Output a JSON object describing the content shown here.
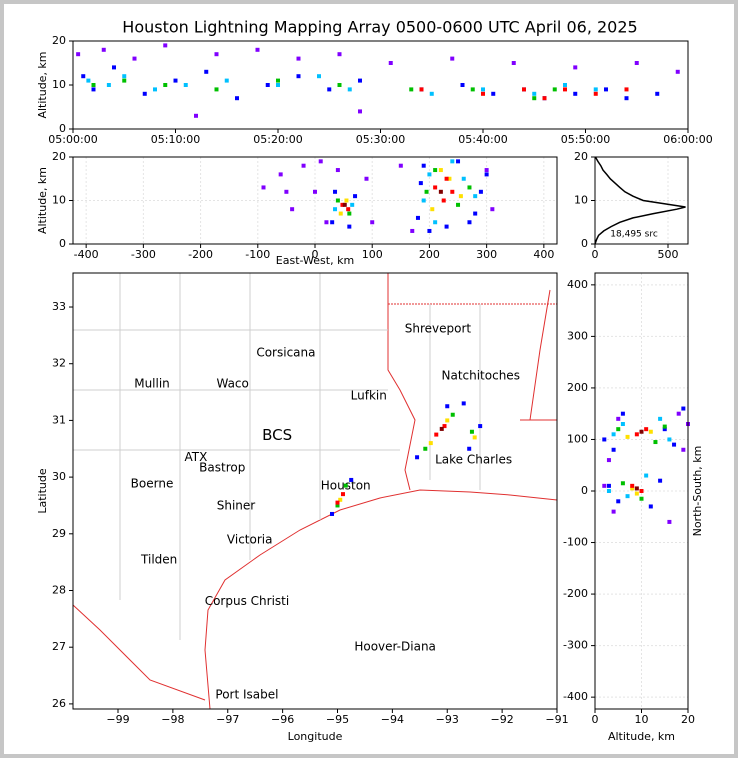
{
  "chart_data": [
    {
      "type": "scatter",
      "title": "Houston Lightning Mapping Array 0500-0600 UTC April 06, 2025",
      "ylabel": "Altitude, km",
      "xlim": [
        0,
        60
      ],
      "ylim": [
        0,
        20
      ],
      "xticks": [
        {
          "value": 0,
          "label": "05:00:00"
        },
        {
          "value": 10,
          "label": "05:10:00"
        },
        {
          "value": 20,
          "label": "05:20:00"
        },
        {
          "value": 30,
          "label": "05:30:00"
        },
        {
          "value": 40,
          "label": "05:40:00"
        },
        {
          "value": 50,
          "label": "05:50:00"
        },
        {
          "value": 60,
          "label": "06:00:00"
        }
      ],
      "yticks": [
        0,
        10,
        20
      ],
      "grid": false,
      "series": [
        {
          "color": "#8000ff",
          "x": [
            0.5,
            3,
            6,
            9,
            14,
            18,
            22,
            26,
            31,
            37,
            43,
            49,
            55,
            59,
            12,
            28
          ],
          "y": [
            17,
            18,
            16,
            19,
            17,
            18,
            16,
            17,
            15,
            16,
            15,
            14,
            15,
            13,
            3,
            4
          ]
        },
        {
          "color": "#0000ff",
          "x": [
            1,
            2,
            4,
            7,
            10,
            13,
            16,
            19,
            22,
            25,
            28,
            34,
            38,
            41,
            44,
            46,
            49,
            52,
            54,
            57
          ],
          "y": [
            12,
            9,
            14,
            8,
            11,
            13,
            7,
            10,
            12,
            9,
            11,
            9,
            10,
            8,
            9,
            7,
            8,
            9,
            7,
            8
          ]
        },
        {
          "color": "#00c0ff",
          "x": [
            1.5,
            3.5,
            5,
            8,
            11,
            15,
            20,
            24,
            27,
            35,
            40,
            45,
            48,
            51
          ],
          "y": [
            11,
            10,
            12,
            9,
            10,
            11,
            10,
            12,
            9,
            8,
            9,
            8,
            10,
            9
          ]
        },
        {
          "color": "#00c000",
          "x": [
            2,
            5,
            9,
            14,
            20,
            26,
            33,
            39,
            45,
            47
          ],
          "y": [
            10,
            11,
            10,
            9,
            11,
            10,
            9,
            9,
            7,
            9
          ]
        },
        {
          "color": "#ff0000",
          "x": [
            34,
            40,
            44,
            46,
            48,
            51,
            54
          ],
          "y": [
            9,
            8,
            9,
            7,
            9,
            8,
            9
          ]
        }
      ]
    },
    {
      "type": "scatter",
      "xlabel": "East-West, km",
      "ylabel": "Altitude, km",
      "xlim": [
        -423,
        423
      ],
      "ylim": [
        0,
        20
      ],
      "xticks": [
        -400,
        -300,
        -200,
        -100,
        0,
        100,
        200,
        300,
        400
      ],
      "yticks": [
        0,
        10,
        20
      ],
      "grid": true,
      "series": [
        {
          "color": "#8000ff",
          "x": [
            -90,
            -60,
            -40,
            -20,
            0,
            20,
            40,
            90,
            100,
            150,
            170,
            300,
            310,
            -50,
            10
          ],
          "y": [
            13,
            16,
            8,
            18,
            12,
            5,
            17,
            15,
            5,
            18,
            3,
            17,
            8,
            12,
            19
          ]
        },
        {
          "color": "#0000ff",
          "x": [
            30,
            35,
            60,
            70,
            180,
            185,
            190,
            280,
            290,
            300,
            230,
            250,
            200,
            270
          ],
          "y": [
            5,
            12,
            4,
            11,
            6,
            14,
            18,
            7,
            12,
            16,
            4,
            19,
            3,
            5
          ]
        },
        {
          "color": "#00c0ff",
          "x": [
            35,
            65,
            190,
            200,
            280,
            260,
            240,
            210
          ],
          "y": [
            8,
            9,
            10,
            16,
            11,
            15,
            19,
            5
          ]
        },
        {
          "color": "#00c000",
          "x": [
            40,
            60,
            195,
            270,
            210,
            250
          ],
          "y": [
            10,
            7,
            12,
            13,
            17,
            9
          ]
        },
        {
          "color": "#ffe000",
          "x": [
            45,
            55,
            205,
            235,
            255,
            220
          ],
          "y": [
            7,
            10,
            8,
            15,
            11,
            17
          ]
        },
        {
          "color": "#ff0000",
          "x": [
            48,
            58,
            210,
            225,
            240,
            230
          ],
          "y": [
            9,
            8,
            13,
            10,
            12,
            15
          ]
        },
        {
          "color": "#800000",
          "x": [
            52,
            220
          ],
          "y": [
            9,
            12
          ]
        }
      ]
    },
    {
      "type": "line",
      "annotation": "18,495 src",
      "xlim": [
        0,
        637
      ],
      "ylim": [
        0,
        20
      ],
      "xticks": [
        0,
        500
      ],
      "yticks": [
        0,
        10,
        20
      ],
      "grid": true,
      "series": [
        {
          "color": "#000000",
          "x": [
            0,
            10,
            25,
            60,
            110,
            170,
            260,
            400,
            560,
            620,
            520,
            330,
            260,
            205,
            170,
            137,
            105,
            80,
            55,
            40,
            20,
            3
          ],
          "y": [
            0,
            1,
            2,
            3,
            4,
            5,
            6,
            7,
            8,
            8.5,
            9,
            10,
            11,
            12,
            13,
            14,
            15,
            16,
            17,
            18,
            19,
            20
          ]
        }
      ]
    },
    {
      "type": "map",
      "xlabel": "Longitude",
      "ylabel": "Latitude",
      "xlim": [
        -99.82,
        -91
      ],
      "ylim": [
        25.91,
        33.6
      ],
      "xticks": [
        {
          "value": -99,
          "label": "−99"
        },
        {
          "value": -98,
          "label": "−98"
        },
        {
          "value": -97,
          "label": "−97"
        },
        {
          "value": -96,
          "label": "−96"
        },
        {
          "value": -95,
          "label": "−95"
        },
        {
          "value": -94,
          "label": "−94"
        },
        {
          "value": -93,
          "label": "−93"
        },
        {
          "value": -92,
          "label": "−92"
        },
        {
          "value": -91,
          "label": "−91"
        }
      ],
      "yticks": [
        26,
        27,
        28,
        29,
        30,
        31,
        32,
        33
      ],
      "grid": false,
      "places": [
        {
          "label": "Shreveport",
          "lon": -93.17,
          "lat": 32.61,
          "color": "#000000"
        },
        {
          "label": "Corsicana",
          "lon": -95.94,
          "lat": 32.19,
          "color": "#000000"
        },
        {
          "label": "Natchitoches",
          "lon": -92.39,
          "lat": 31.78,
          "color": "#000000"
        },
        {
          "label": "Mullin",
          "lon": -98.38,
          "lat": 31.64,
          "color": "#ff8c3c"
        },
        {
          "label": "Waco",
          "lon": -96.91,
          "lat": 31.64,
          "color": "#000000"
        },
        {
          "label": "Lufkin",
          "lon": -94.43,
          "lat": 31.43,
          "color": "#000000"
        },
        {
          "label": "BCS",
          "lon": -96.1,
          "lat": 30.73,
          "color": "#800000"
        },
        {
          "label": "ATX",
          "lon": -97.58,
          "lat": 30.35,
          "color": "#ff8c3c"
        },
        {
          "label": "Bastrop",
          "lon": -97.1,
          "lat": 30.16,
          "color": "#000000"
        },
        {
          "label": "Lake Charles",
          "lon": -92.52,
          "lat": 30.3,
          "color": "#000000"
        },
        {
          "label": "Boerne",
          "lon": -98.38,
          "lat": 29.88,
          "color": "#000000"
        },
        {
          "label": "Houston",
          "lon": -94.85,
          "lat": 29.84,
          "color": "#f0a020"
        },
        {
          "label": "Shiner",
          "lon": -96.85,
          "lat": 29.49,
          "color": "#000000"
        },
        {
          "label": "Victoria",
          "lon": -96.6,
          "lat": 28.89,
          "color": "#000000"
        },
        {
          "label": "Tilden",
          "lon": -98.25,
          "lat": 28.54,
          "color": "#000000"
        },
        {
          "label": "Corpus Christi",
          "lon": -96.65,
          "lat": 27.81,
          "color": "#000000"
        },
        {
          "label": "Hoover-Diana",
          "lon": -93.95,
          "lat": 27.0,
          "color": "#0000ff"
        },
        {
          "label": "Port Isabel",
          "lon": -96.65,
          "lat": 26.16,
          "color": "#000000"
        }
      ],
      "series": [
        {
          "color": "#0000ff",
          "x": [
            -95.1,
            -94.75,
            -93.55,
            -92.7,
            -92.4,
            -93.0,
            -92.6
          ],
          "y": [
            29.35,
            29.95,
            30.35,
            31.3,
            30.9,
            31.25,
            30.5
          ]
        },
        {
          "color": "#00c000",
          "x": [
            -95.0,
            -94.85,
            -93.4,
            -92.9,
            -92.55
          ],
          "y": [
            29.5,
            29.85,
            30.5,
            31.1,
            30.8
          ]
        },
        {
          "color": "#ffe000",
          "x": [
            -94.95,
            -93.3,
            -93.0,
            -92.5
          ],
          "y": [
            29.6,
            30.6,
            31.0,
            30.7
          ]
        },
        {
          "color": "#ff0000",
          "x": [
            -95.0,
            -94.9,
            -93.2,
            -93.05
          ],
          "y": [
            29.55,
            29.7,
            30.75,
            30.9
          ]
        },
        {
          "color": "#800000",
          "x": [
            -93.1
          ],
          "y": [
            30.85
          ]
        }
      ]
    },
    {
      "type": "scatter",
      "xlabel": "Altitude, km",
      "ylabel": "North-South, km",
      "ylabel_side": "right",
      "xlim": [
        0,
        20
      ],
      "ylim": [
        -423,
        423
      ],
      "xticks": [
        0,
        10,
        20
      ],
      "yticks": [
        -400,
        -300,
        -200,
        -100,
        0,
        100,
        200,
        300,
        400
      ],
      "grid": true,
      "series": [
        {
          "color": "#8000ff",
          "x": [
            3,
            5,
            18,
            19,
            20,
            4,
            16,
            2
          ],
          "y": [
            60,
            140,
            150,
            80,
            130,
            -40,
            -60,
            10
          ]
        },
        {
          "color": "#0000ff",
          "x": [
            2,
            4,
            6,
            15,
            17,
            19,
            3,
            5,
            12,
            14
          ],
          "y": [
            100,
            80,
            150,
            120,
            90,
            160,
            10,
            -20,
            -30,
            20
          ]
        },
        {
          "color": "#00c0ff",
          "x": [
            4,
            6,
            14,
            16,
            3,
            7,
            11
          ],
          "y": [
            110,
            130,
            140,
            100,
            0,
            -10,
            30
          ]
        },
        {
          "color": "#00c000",
          "x": [
            5,
            13,
            15,
            6,
            10
          ],
          "y": [
            120,
            95,
            125,
            15,
            -15
          ]
        },
        {
          "color": "#ffe000",
          "x": [
            7,
            12,
            8,
            9
          ],
          "y": [
            105,
            115,
            5,
            -5
          ]
        },
        {
          "color": "#ff0000",
          "x": [
            9,
            11,
            10,
            8
          ],
          "y": [
            110,
            120,
            0,
            10
          ]
        },
        {
          "color": "#800000",
          "x": [
            10,
            9
          ],
          "y": [
            115,
            5
          ]
        }
      ]
    }
  ]
}
